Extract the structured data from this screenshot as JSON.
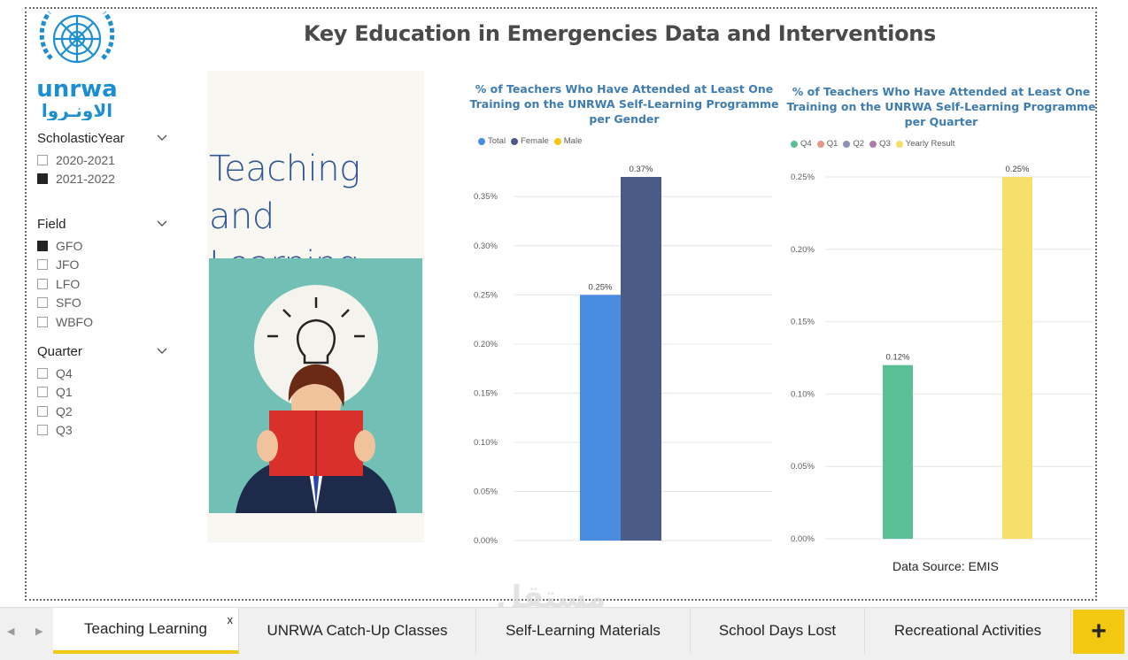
{
  "report": {
    "title": "Key Education in Emergencies Data and Interventions",
    "data_source": "Data Source: EMIS",
    "image_panel_text_line1": "Teaching and",
    "image_panel_text_line2": "Learning",
    "logo_text": "unrwa",
    "logo_text_arabic": "الاونـروا"
  },
  "slicers": [
    {
      "title": "ScholasticYear",
      "options": [
        {
          "label": "2020-2021",
          "checked": false
        },
        {
          "label": "2021-2022",
          "checked": true
        }
      ]
    },
    {
      "title": "Field",
      "options": [
        {
          "label": "GFO",
          "checked": true
        },
        {
          "label": "JFO",
          "checked": false
        },
        {
          "label": "LFO",
          "checked": false
        },
        {
          "label": "SFO",
          "checked": false
        },
        {
          "label": "WBFO",
          "checked": false
        }
      ]
    },
    {
      "title": "Quarter",
      "options": [
        {
          "label": "Q4",
          "checked": false
        },
        {
          "label": "Q1",
          "checked": false
        },
        {
          "label": "Q2",
          "checked": false
        },
        {
          "label": "Q3",
          "checked": false
        }
      ]
    }
  ],
  "chart_data": [
    {
      "type": "bar",
      "title_lines": [
        "% of Teachers Who Have Attended at Least One",
        "Training on the UNRWA Self-Learning Programme",
        "per Gender"
      ],
      "legend_position": "top-left",
      "ylim": [
        0,
        0.37
      ],
      "yticks": [
        "0.00%",
        "0.05%",
        "0.10%",
        "0.15%",
        "0.20%",
        "0.25%",
        "0.30%",
        "0.35%"
      ],
      "grid": true,
      "series": [
        {
          "name": "Total",
          "color": "#4a8cdf",
          "value": 0.25,
          "label": "0.25%"
        },
        {
          "name": "Female",
          "color": "#4a5b87",
          "value": 0.37,
          "label": "0.37%"
        },
        {
          "name": "Male",
          "color": "#f2c811",
          "value": null,
          "label": ""
        }
      ]
    },
    {
      "type": "bar",
      "title_lines": [
        "% of Teachers Who Have Attended at Least One",
        "Training on the UNRWA Self-Learning Programme",
        "per Quarter"
      ],
      "legend_position": "top-left",
      "ylim": [
        0,
        0.25
      ],
      "yticks": [
        "0.00%",
        "0.05%",
        "0.10%",
        "0.15%",
        "0.20%",
        "0.25%"
      ],
      "grid": true,
      "series": [
        {
          "name": "Q4",
          "color": "#5bbf96",
          "value": 0.12,
          "label": "0.12%"
        },
        {
          "name": "Q1",
          "color": "#e8958a",
          "value": null,
          "label": ""
        },
        {
          "name": "Q2",
          "color": "#8d93b3",
          "value": null,
          "label": ""
        },
        {
          "name": "Q3",
          "color": "#a97fa8",
          "value": null,
          "label": ""
        },
        {
          "name": "Yearly Result",
          "color": "#f6df6b",
          "value": 0.25,
          "label": "0.25%"
        }
      ]
    }
  ],
  "tabs": [
    {
      "label": "Teaching Learning",
      "active": true
    },
    {
      "label": "UNRWA Catch-Up Classes",
      "active": false
    },
    {
      "label": "Self-Learning Materials",
      "active": false
    },
    {
      "label": "School Days Lost",
      "active": false
    },
    {
      "label": "Recreational Activities",
      "active": false
    }
  ],
  "tabbar": {
    "prev_icon": "◀",
    "next_icon": "▶",
    "close_label": "x",
    "add_label": "+"
  },
  "watermark": "مستقل"
}
